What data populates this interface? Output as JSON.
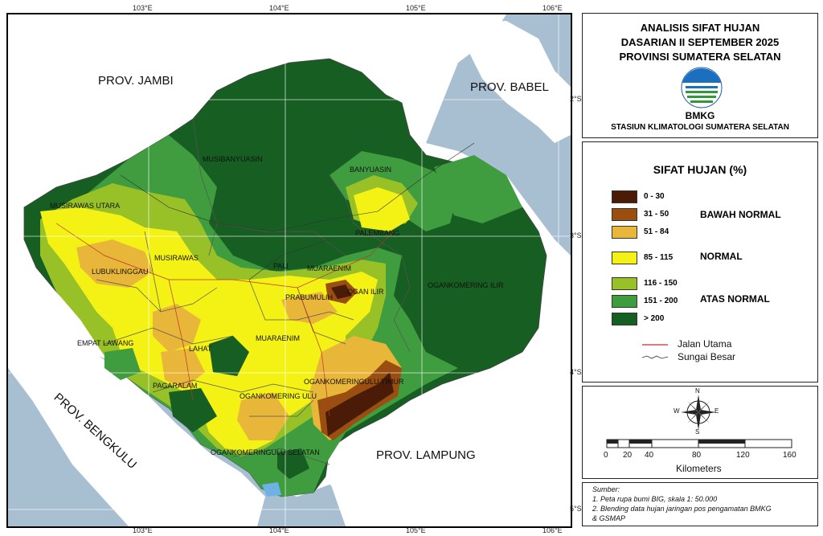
{
  "map": {
    "longitude_labels": [
      "103°E",
      "104°E",
      "105°E",
      "106°E"
    ],
    "latitude_labels": [
      "2°S",
      "3°S",
      "4°S",
      "5°S"
    ],
    "province_labels": [
      "PROV. JAMBI",
      "PROV. BABEL",
      "PROV. BENGKULU",
      "PROV. LAMPUNG"
    ],
    "district_labels": [
      "MUSIBANYUASIN",
      "BANYUASIN",
      "MUSIRAWAS UTARA",
      "PALEMBANG",
      "MUSIRAWAS",
      "LUBUKLINGGAU",
      "PALI",
      "MUARAENIM",
      "OGAN ILIR",
      "OGANKOMERING ILIR",
      "PRABUMULIH",
      "EMPAT LAWANG",
      "LAHAT",
      "MUARAENIM",
      "OGANKOMERINGULU TIMUR",
      "PAGARALAM",
      "OGANKOMERING ULU",
      "OGANKOMERINGULU SELATAN"
    ],
    "colors": {
      "sea": "#a8bfd2",
      "land": "#ffffff",
      "c0_30": "#4a1c08",
      "c31_50": "#9a4e10",
      "c51_84": "#e8b73a",
      "c85_115": "#f4f215",
      "c116_150": "#98c128",
      "c151_200": "#3f9c3f",
      "c_gt200": "#175e22",
      "road": "#c0302a"
    }
  },
  "title_panel": {
    "line1": "ANALISIS SIFAT HUJAN",
    "line2": "DASARIAN II SEPTEMBER 2025",
    "line3": "PROVINSI SUMATERA SELATAN",
    "agency": "BMKG",
    "station": "STASIUN KLIMATOLOGI SUMATERA SELATAN",
    "logo_icon": "bmkg-logo-icon"
  },
  "legend": {
    "title": "SIFAT HUJAN (%)",
    "classes": [
      {
        "label": "0 - 30",
        "color": "#4a1c08"
      },
      {
        "label": "31 - 50",
        "color": "#9a4e10"
      },
      {
        "label": "51 - 84",
        "color": "#e8b73a"
      },
      {
        "label": "85 - 115",
        "color": "#f4f215"
      },
      {
        "label": "116 - 150",
        "color": "#98c128"
      },
      {
        "label": "151 - 200",
        "color": "#3f9c3f"
      },
      {
        "label": "> 200",
        "color": "#175e22"
      }
    ],
    "categories": [
      "BAWAH NORMAL",
      "NORMAL",
      "ATAS NORMAL"
    ],
    "road_label": "Jalan Utama",
    "river_label": "Sungai Besar"
  },
  "scale_panel": {
    "compass": {
      "n": "N",
      "s": "S",
      "e": "E",
      "w": "W"
    },
    "ticks": [
      "0",
      "20",
      "40",
      "80",
      "120",
      "160"
    ],
    "unit": "Kilometers"
  },
  "source": {
    "heading": "Sumber:",
    "line1": "1. Peta rupa bumi BIG, skala 1: 50.000",
    "line2": "2. Blending data hujan jaringan pos pengamatan BMKG",
    "line3": "& GSMAP"
  }
}
